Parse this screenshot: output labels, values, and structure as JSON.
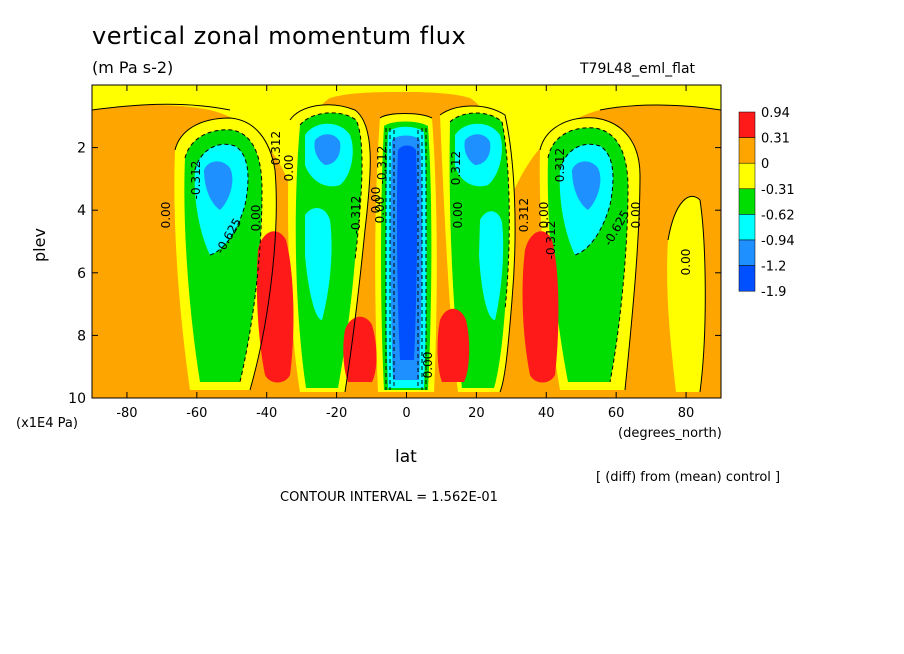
{
  "chart_data": {
    "type": "contour",
    "title": "vertical zonal momentum flux",
    "subtitle": "(m Pa s-2)",
    "run_label": "T79L48_eml_flat",
    "xlabel": "lat",
    "xunit": "(degrees_north)",
    "ylabel": "plev",
    "yunit": "(x1E4 Pa)",
    "xlim": [
      -90,
      90
    ],
    "ylim": [
      10,
      0
    ],
    "x_ticks": [
      -80,
      -60,
      -40,
      -20,
      0,
      20,
      40,
      60,
      80
    ],
    "y_ticks": [
      2,
      4,
      6,
      8,
      10
    ],
    "colorbar": {
      "levels": [
        "0.94",
        "0.31",
        "0",
        "-0.31",
        "-0.62",
        "-0.94",
        "-1.2",
        "-1.9"
      ],
      "colors": [
        "#ff1a1a",
        "#ffa500",
        "#ffff00",
        "#00dd00",
        "#00ffff",
        "#1e90ff",
        "#0050ff"
      ]
    },
    "contour_labels": [
      "0.00",
      "-0.312",
      "-0.625",
      "0.00",
      "0.312",
      "0.00",
      "-0.312",
      "0.00",
      "-0.312",
      "0.312",
      "0.00",
      "0.312",
      "0.00",
      "0.312",
      "-0.312",
      "-0.625",
      "0.00",
      "0.00",
      "0.00",
      "0.00"
    ],
    "note": "[ (diff) from (mean) control ]",
    "contour_interval": "CONTOUR INTERVAL = 1.562E-01"
  }
}
